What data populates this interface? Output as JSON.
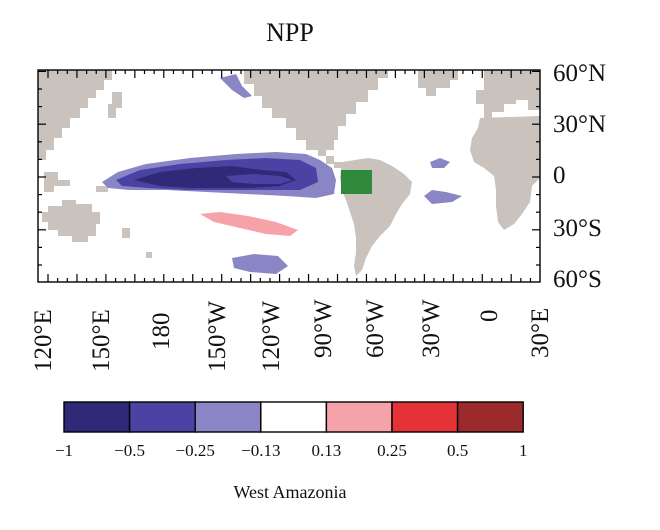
{
  "title": "NPP",
  "caption": "West Amazonia",
  "lat_labels": [
    "60°N",
    "30°N",
    "0",
    "30°S",
    "60°S"
  ],
  "lon_labels": [
    "120°E",
    "150°E",
    "180",
    "150°W",
    "120°W",
    "90°W",
    "60°W",
    "30°W",
    "0",
    "30°E"
  ],
  "colorbar": {
    "ticks": [
      "−1",
      "−0.5",
      "−0.25",
      "−0.13",
      "0.13",
      "0.25",
      "0.5",
      "1"
    ],
    "colors": [
      "#2e2a78",
      "#4b43a3",
      "#8a86c6",
      "#ffffff",
      "#f5a3a8",
      "#e53236",
      "#9b2a2c"
    ]
  },
  "colors": {
    "land": "#c9c2bd",
    "region_box": "#2f8a3c",
    "outline": "#000000"
  }
}
